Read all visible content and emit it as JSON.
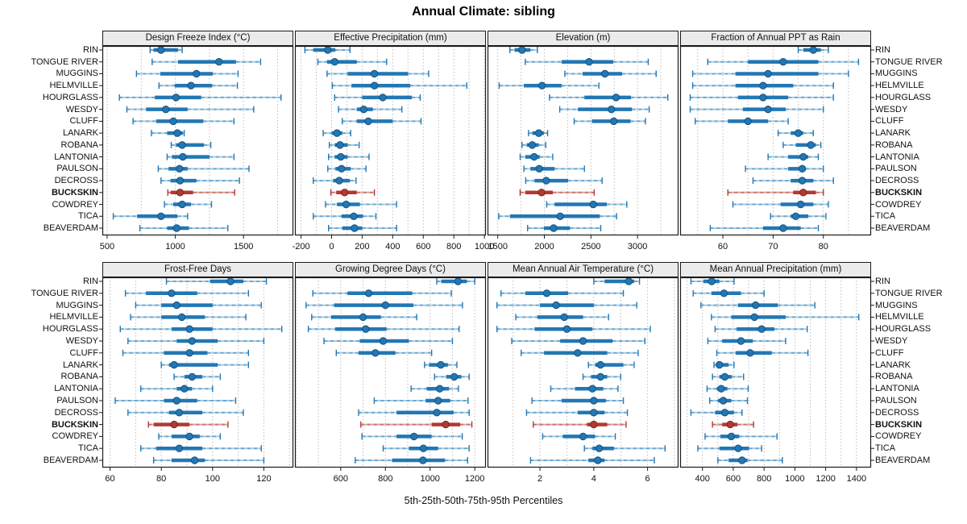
{
  "chart_data": {
    "type": "scatter",
    "subtype": "percentile-whisker-dotplot",
    "title": "Annual Climate: sibling",
    "caption": "5th-25th-50th-75th-95th Percentiles",
    "percentiles": [
      5,
      25,
      50,
      75,
      95
    ],
    "grid": "dotted-vertical",
    "layout": {
      "rows": 2,
      "cols": 4,
      "station_labels": "both-sides",
      "highlight_station": "BUCKSKIN"
    },
    "colors": {
      "blue": "#2277b4",
      "blue_light": "#a8cde6",
      "blue_dark": "#15537f",
      "red": "#b03a33",
      "red_light": "#dca59e",
      "red_dark": "#7d2520",
      "grid": "#bdbdbd",
      "strip_bg": "#ebebeb",
      "border": "#1a1a1a"
    },
    "stations": [
      {
        "name": "RIN",
        "highlight": false
      },
      {
        "name": "TONGUE RIVER",
        "highlight": false
      },
      {
        "name": "MUGGINS",
        "highlight": false
      },
      {
        "name": "HELMVILLE",
        "highlight": false
      },
      {
        "name": "HOURGLASS",
        "highlight": false
      },
      {
        "name": "WESDY",
        "highlight": false
      },
      {
        "name": "CLUFF",
        "highlight": false
      },
      {
        "name": "LANARK",
        "highlight": false
      },
      {
        "name": "ROBANA",
        "highlight": false
      },
      {
        "name": "LANTONIA",
        "highlight": false
      },
      {
        "name": "PAULSON",
        "highlight": false
      },
      {
        "name": "DECROSS",
        "highlight": false
      },
      {
        "name": "BUCKSKIN",
        "highlight": true
      },
      {
        "name": "COWDREY",
        "highlight": false
      },
      {
        "name": "TICA",
        "highlight": false
      },
      {
        "name": "BEAVERDAM",
        "highlight": false
      }
    ],
    "panels": [
      {
        "title": "Design Freeze Index (°C)",
        "row": 0,
        "col": 0,
        "ticks": [
          500,
          1000,
          1500
        ],
        "range": [
          465,
          1865
        ],
        "minor": 250,
        "values": [
          [
            815,
            840,
            895,
            1020,
            1050
          ],
          [
            830,
            1020,
            1320,
            1445,
            1625
          ],
          [
            715,
            890,
            1155,
            1275,
            1460
          ],
          [
            880,
            995,
            1115,
            1270,
            1455
          ],
          [
            590,
            850,
            1005,
            1190,
            1775
          ],
          [
            645,
            785,
            930,
            1090,
            1575
          ],
          [
            690,
            860,
            985,
            1205,
            1430
          ],
          [
            825,
            940,
            1015,
            1055,
            1065
          ],
          [
            970,
            1005,
            1050,
            1210,
            1260
          ],
          [
            940,
            975,
            1055,
            1250,
            1430
          ],
          [
            875,
            950,
            1030,
            1090,
            1540
          ],
          [
            895,
            965,
            1035,
            1155,
            1470
          ],
          [
            945,
            965,
            1035,
            1130,
            1435
          ],
          [
            920,
            985,
            1050,
            1115,
            1265
          ],
          [
            545,
            720,
            895,
            1015,
            1090
          ],
          [
            740,
            940,
            1010,
            1100,
            1385
          ]
        ]
      },
      {
        "title": "Effective Precipitation (mm)",
        "row": 0,
        "col": 1,
        "ticks": [
          -200,
          0,
          200,
          400,
          600,
          800,
          1000
        ],
        "range": [
          -240,
          1010
        ],
        "minor": 100,
        "values": [
          [
            -175,
            -120,
            -25,
            25,
            120
          ],
          [
            -90,
            -30,
            20,
            165,
            360
          ],
          [
            -30,
            105,
            280,
            500,
            635
          ],
          [
            5,
            130,
            280,
            515,
            885
          ],
          [
            20,
            200,
            335,
            525,
            580
          ],
          [
            45,
            165,
            210,
            270,
            460
          ],
          [
            70,
            165,
            240,
            400,
            585
          ],
          [
            -55,
            0,
            35,
            70,
            125
          ],
          [
            -15,
            20,
            55,
            105,
            180
          ],
          [
            -20,
            20,
            60,
            105,
            245
          ],
          [
            -25,
            25,
            65,
            125,
            225
          ],
          [
            -120,
            10,
            50,
            120,
            160
          ],
          [
            -5,
            30,
            85,
            165,
            280
          ],
          [
            -40,
            35,
            95,
            185,
            425
          ],
          [
            -120,
            65,
            145,
            205,
            290
          ],
          [
            -20,
            70,
            150,
            200,
            425
          ]
        ]
      },
      {
        "title": "Elevation (m)",
        "row": 0,
        "col": 2,
        "ticks": [
          1500,
          2000,
          2500,
          3000
        ],
        "range": [
          1390,
          3440
        ],
        "minor": 250,
        "values": [
          [
            1630,
            1680,
            1760,
            1850,
            1925
          ],
          [
            1795,
            2185,
            2480,
            2740,
            3115
          ],
          [
            2220,
            2410,
            2650,
            2835,
            3200
          ],
          [
            1515,
            1780,
            1975,
            2185,
            2585
          ],
          [
            2055,
            2430,
            2770,
            2930,
            3325
          ],
          [
            2165,
            2360,
            2720,
            2940,
            3125
          ],
          [
            2320,
            2510,
            2745,
            2925,
            3085
          ],
          [
            1830,
            1870,
            1940,
            1995,
            2035
          ],
          [
            1760,
            1810,
            1870,
            1940,
            2015
          ],
          [
            1740,
            1795,
            1890,
            1950,
            2090
          ],
          [
            1780,
            1850,
            1945,
            2110,
            2430
          ],
          [
            1800,
            1895,
            2020,
            2255,
            2620
          ],
          [
            1740,
            1795,
            1970,
            2090,
            2535
          ],
          [
            2025,
            2110,
            2525,
            2670,
            2885
          ],
          [
            1510,
            1630,
            2170,
            2595,
            2775
          ],
          [
            1820,
            1995,
            2100,
            2275,
            2605
          ]
        ]
      },
      {
        "title": "Fraction of Annual PPT as Rain",
        "row": 0,
        "col": 3,
        "ticks": [
          60,
          70,
          80
        ],
        "range": [
          51.5,
          89.5
        ],
        "minor": 5,
        "values": [
          [
            75,
            76,
            78,
            79.5,
            81
          ],
          [
            57,
            65,
            72,
            79,
            87
          ],
          [
            54,
            62.5,
            69,
            79,
            85
          ],
          [
            54,
            62.5,
            68,
            74,
            82
          ],
          [
            53.5,
            63,
            68,
            73,
            82
          ],
          [
            53.5,
            64,
            69,
            72.5,
            80
          ],
          [
            54.5,
            61,
            65,
            69,
            73
          ],
          [
            71,
            73.5,
            75,
            76,
            78
          ],
          [
            72,
            74.5,
            77.5,
            78.5,
            79.5
          ],
          [
            69,
            73,
            76,
            77,
            79
          ],
          [
            64.5,
            73,
            75.8,
            76.5,
            80
          ],
          [
            66,
            73.5,
            75.8,
            78,
            82
          ],
          [
            61,
            74,
            76,
            78.5,
            80
          ],
          [
            62,
            71.5,
            75.5,
            78,
            81
          ],
          [
            69.5,
            73.5,
            74.5,
            77,
            80.5
          ],
          [
            57.5,
            68,
            72,
            75.5,
            79
          ]
        ]
      },
      {
        "title": "Frost-Free Days",
        "row": 1,
        "col": 0,
        "ticks": [
          60,
          80,
          100,
          120
        ],
        "range": [
          57,
          131.5
        ],
        "minor": 10,
        "values": [
          [
            82,
            99,
            107,
            112,
            121
          ],
          [
            66,
            74,
            84,
            94,
            114
          ],
          [
            70,
            80,
            86,
            100,
            119
          ],
          [
            68,
            80,
            88,
            97,
            113
          ],
          [
            64,
            84,
            91,
            100,
            127
          ],
          [
            67,
            86,
            92,
            102,
            120
          ],
          [
            65,
            81,
            91,
            98,
            114
          ],
          [
            80,
            83,
            85,
            102,
            114
          ],
          [
            85,
            89,
            92,
            96,
            103
          ],
          [
            72,
            86,
            89,
            92,
            100
          ],
          [
            62,
            81,
            86,
            94,
            109
          ],
          [
            67,
            83,
            87,
            96,
            112
          ],
          [
            75,
            77,
            85,
            91,
            106
          ],
          [
            79,
            84,
            91,
            95,
            103
          ],
          [
            72,
            78,
            87,
            96,
            119
          ],
          [
            77,
            84,
            93,
            97,
            120
          ]
        ]
      },
      {
        "title": "Growing Degree Days (°C)",
        "row": 1,
        "col": 1,
        "ticks": [
          600,
          800,
          1000,
          1200
        ],
        "range": [
          395,
          1250
        ],
        "minor": 100,
        "values": [
          [
            1030,
            1050,
            1125,
            1165,
            1200
          ],
          [
            475,
            630,
            725,
            920,
            1095
          ],
          [
            445,
            570,
            800,
            925,
            1145
          ],
          [
            470,
            557,
            700,
            780,
            940
          ],
          [
            455,
            575,
            712,
            805,
            1130
          ],
          [
            525,
            685,
            790,
            905,
            1100
          ],
          [
            580,
            680,
            755,
            845,
            1007
          ],
          [
            975,
            995,
            1048,
            1080,
            1120
          ],
          [
            1020,
            1072,
            1108,
            1140,
            1175
          ],
          [
            915,
            985,
            1043,
            1085,
            1127
          ],
          [
            750,
            980,
            1036,
            1090,
            1170
          ],
          [
            680,
            850,
            1030,
            1105,
            1175
          ],
          [
            690,
            1007,
            1070,
            1135,
            1187
          ],
          [
            695,
            850,
            928,
            1007,
            1144
          ],
          [
            790,
            905,
            970,
            1036,
            1175
          ],
          [
            665,
            830,
            968,
            1067,
            1168
          ]
        ]
      },
      {
        "title": "Mean Annual Air Temperature (°C)",
        "row": 1,
        "col": 2,
        "ticks": [
          2,
          4,
          6
        ],
        "range": [
          0.05,
          7.15
        ],
        "minor": 1,
        "values": [
          [
            4.0,
            4.4,
            5.3,
            5.5,
            5.7
          ],
          [
            0.55,
            1.45,
            2.25,
            3.05,
            5.1
          ],
          [
            0.4,
            2.0,
            2.6,
            4.0,
            5.6
          ],
          [
            1.1,
            1.9,
            2.9,
            3.6,
            4.55
          ],
          [
            0.4,
            1.8,
            3.0,
            3.95,
            6.1
          ],
          [
            0.95,
            2.75,
            3.6,
            4.7,
            5.9
          ],
          [
            1.3,
            2.15,
            3.4,
            4.5,
            5.65
          ],
          [
            3.8,
            4.05,
            4.25,
            5.1,
            5.5
          ],
          [
            3.6,
            3.9,
            4.25,
            4.5,
            5.0
          ],
          [
            2.4,
            3.3,
            3.95,
            4.35,
            4.9
          ],
          [
            1.7,
            2.8,
            4.0,
            4.45,
            5.1
          ],
          [
            1.5,
            3.4,
            4.0,
            4.4,
            5.25
          ],
          [
            1.75,
            3.75,
            4.0,
            4.5,
            5.2
          ],
          [
            2.1,
            2.85,
            3.6,
            4.05,
            4.8
          ],
          [
            3.65,
            3.95,
            4.2,
            4.75,
            6.65
          ],
          [
            1.65,
            3.8,
            4.15,
            4.4,
            6.25
          ]
        ]
      },
      {
        "title": "Mean Annual Precipitation (mm)",
        "row": 1,
        "col": 3,
        "ticks": [
          400,
          600,
          800,
          1000,
          1200,
          1400
        ],
        "range": [
          255,
          1495
        ],
        "minor": 100,
        "values": [
          [
            325,
            405,
            460,
            510,
            605
          ],
          [
            340,
            458,
            540,
            650,
            800
          ],
          [
            390,
            630,
            745,
            890,
            1130
          ],
          [
            458,
            587,
            737,
            940,
            1415
          ],
          [
            482,
            622,
            784,
            867,
            1080
          ],
          [
            435,
            528,
            650,
            727,
            940
          ],
          [
            493,
            615,
            710,
            850,
            1085
          ],
          [
            475,
            500,
            510,
            570,
            605
          ],
          [
            465,
            510,
            545,
            590,
            667
          ],
          [
            430,
            493,
            522,
            562,
            697
          ],
          [
            447,
            500,
            535,
            587,
            692
          ],
          [
            325,
            482,
            545,
            604,
            657
          ],
          [
            465,
            528,
            580,
            627,
            732
          ],
          [
            417,
            517,
            587,
            639,
            884
          ],
          [
            370,
            510,
            632,
            702,
            784
          ],
          [
            500,
            570,
            657,
            692,
            919
          ]
        ]
      }
    ]
  }
}
